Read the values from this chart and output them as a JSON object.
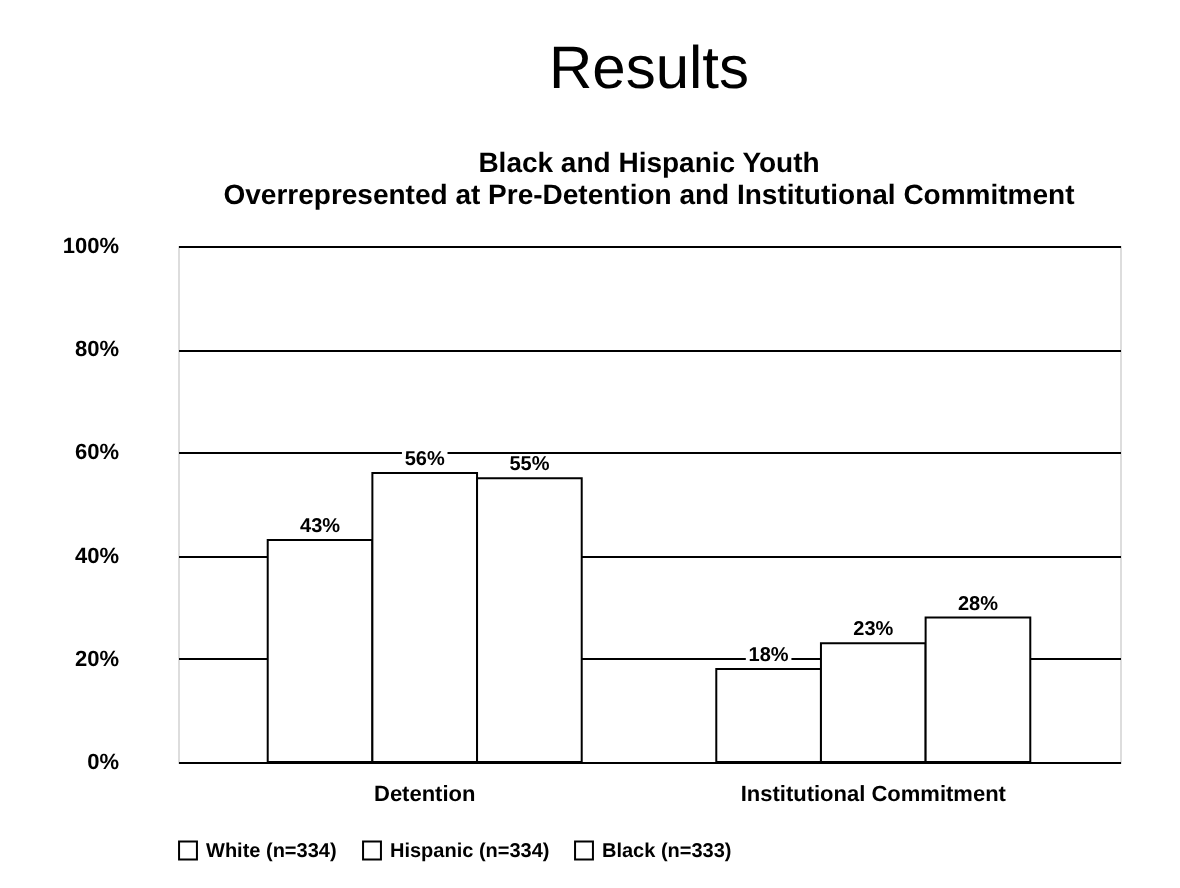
{
  "chart_data": {
    "type": "bar",
    "title": "Results",
    "subtitle": "Black and Hispanic Youth\nOverrepresented at Pre-Detention and Institutional Commitment",
    "categories": [
      "Detention",
      "Institutional Commitment"
    ],
    "series": [
      {
        "name": "White (n=334)",
        "color": "#ffffff",
        "values": [
          43,
          18
        ],
        "value_labels": [
          "43%",
          "18%"
        ]
      },
      {
        "name": "Hispanic (n=334)",
        "color": "#ffffff",
        "values": [
          56,
          23
        ],
        "value_labels": [
          "56%",
          "23%"
        ]
      },
      {
        "name": "Black (n=333)",
        "color": "#ffffff",
        "values": [
          55,
          28
        ],
        "value_labels": [
          "55%",
          "28%"
        ]
      }
    ],
    "ylim": [
      0,
      100
    ],
    "yticks": [
      {
        "value": 0,
        "label": "0%"
      },
      {
        "value": 20,
        "label": "20%"
      },
      {
        "value": 40,
        "label": "40%"
      },
      {
        "value": 60,
        "label": "60%"
      },
      {
        "value": 80,
        "label": "80%"
      },
      {
        "value": 100,
        "label": "100%"
      }
    ],
    "grid": "y",
    "legend": "bottom"
  }
}
